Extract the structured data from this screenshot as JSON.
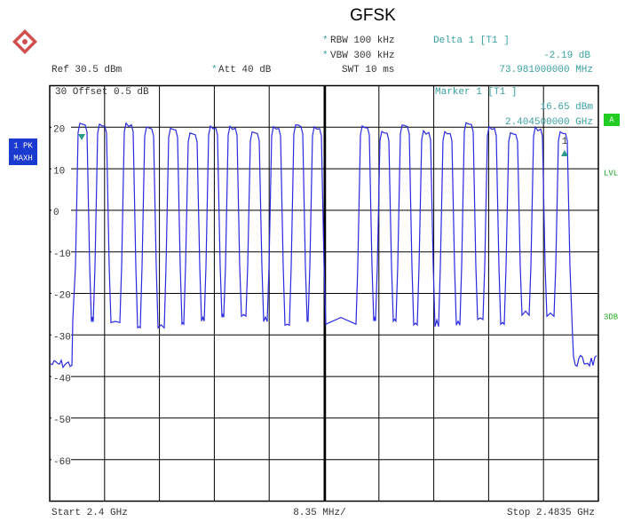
{
  "title": "GFSK",
  "header": {
    "rbw": "RBW 100 kHz",
    "vbw": "VBW 300 kHz",
    "ref": "Ref  30.5 dBm",
    "att": "Att  40 dB",
    "swt": "SWT 10 ms",
    "delta": "Delta 1 [T1 ]",
    "delta_value": "-2.19 dB",
    "delta_freq": "73.981000000 MHz",
    "star": "*"
  },
  "screen": {
    "offset": "30  Offset  0.5 dB",
    "marker": "Marker 1 [T1 ]",
    "marker_level": "16.65 dBm",
    "marker_freq": "2.404500000 GHz",
    "y_labels": [
      "20",
      "10",
      "0",
      "-10",
      "-20",
      "-30",
      "-40",
      "-50",
      "-60"
    ],
    "marker_tag": "1"
  },
  "side": {
    "trace1": "1 PK",
    "trace2": "MAXH",
    "a": "A",
    "lvl": "LVL",
    "db3": "3DB"
  },
  "footer": {
    "start": "Start 2.4 GHz",
    "span": "8.35 MHz/",
    "stop": "Stop 2.4835 GHz"
  }
}
